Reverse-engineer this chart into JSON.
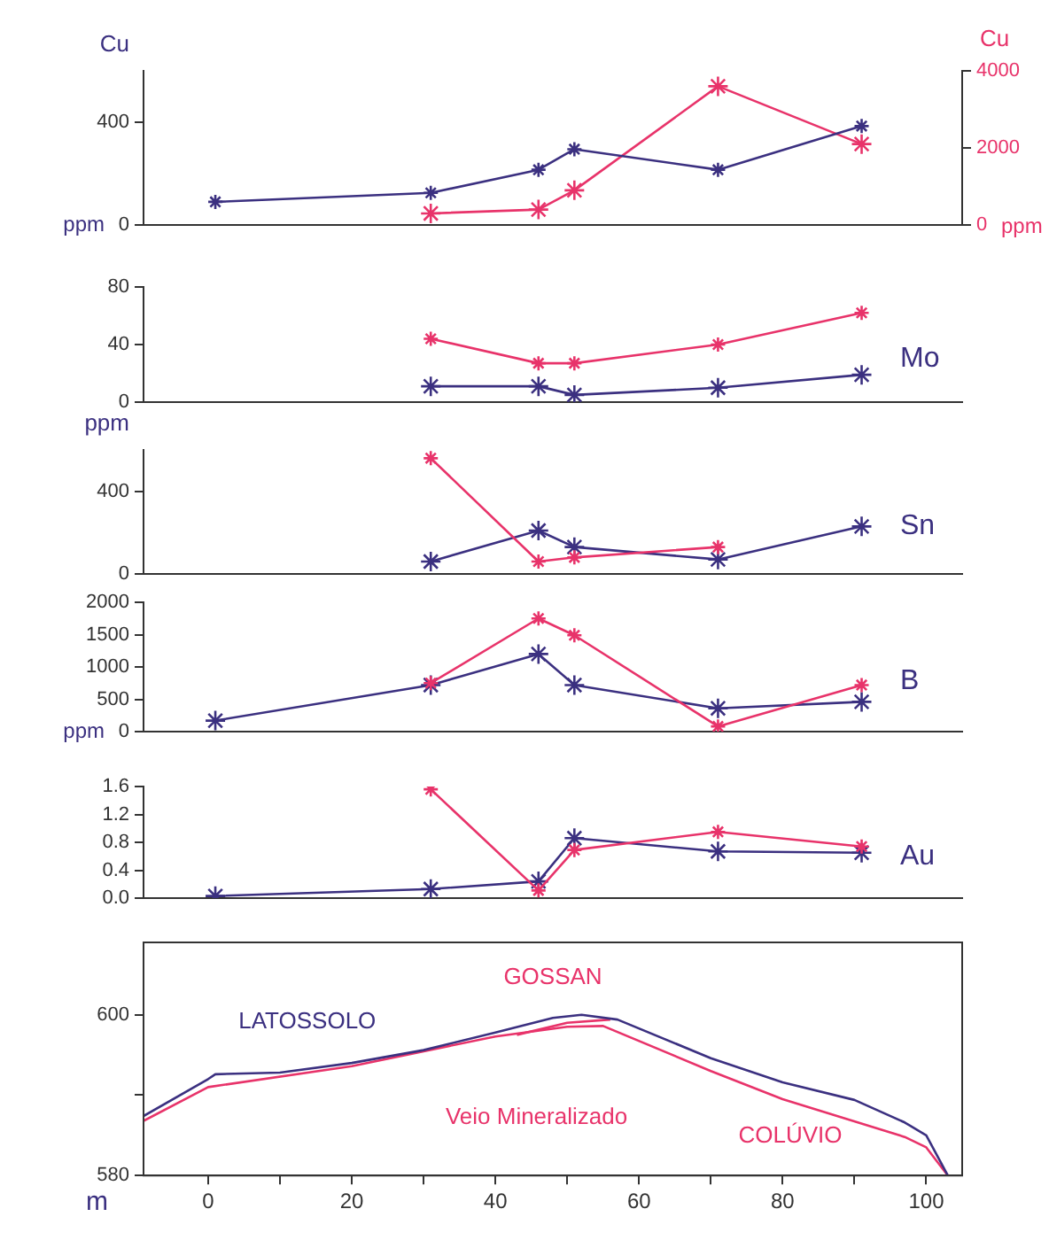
{
  "chart_data": [
    {
      "type": "line",
      "ylabel": "Cu",
      "y2label": "Cu",
      "annotations": [
        "ppm",
        "ppm"
      ],
      "xlim": [
        -9,
        105
      ],
      "ylim": [
        0,
        600
      ],
      "yticks": [
        0,
        400
      ],
      "y2lim": [
        0,
        4000
      ],
      "y2ticks": [
        0,
        2000,
        4000
      ],
      "tick_labels": [
        "y",
        "y2"
      ],
      "marker": "cross",
      "grid": false,
      "legend": false,
      "series": [
        {
          "color": "#3b3080",
          "x": [
            1,
            31,
            46,
            51,
            71,
            91
          ],
          "values": [
            90,
            125,
            215,
            295,
            215,
            385
          ]
        },
        {
          "color": "#e8336a",
          "axis": "y2",
          "x": [
            31,
            46,
            51,
            71,
            91
          ],
          "values": [
            300,
            400,
            900,
            3600,
            2100
          ]
        }
      ]
    },
    {
      "type": "line",
      "title": "Mo",
      "xlim": [
        -9,
        105
      ],
      "ylim": [
        0,
        80
      ],
      "yticks": [
        0,
        40,
        80
      ],
      "tick_labels": "y",
      "marker": "cross",
      "grid": false,
      "legend": false,
      "series": [
        {
          "color": "#e8336a",
          "x": [
            31,
            46,
            51,
            71,
            91
          ],
          "values": [
            44,
            27,
            27,
            40,
            62
          ]
        },
        {
          "color": "#3b3080",
          "x": [
            31,
            46,
            51,
            71,
            91
          ],
          "values": [
            11,
            11,
            5,
            10,
            19
          ]
        }
      ]
    },
    {
      "type": "line",
      "title": "Sn",
      "ylabel": "ppm",
      "xlim": [
        -9,
        105
      ],
      "ylim": [
        0,
        600
      ],
      "yticks": [
        0,
        400
      ],
      "tick_labels": "y",
      "marker": "cross",
      "grid": false,
      "legend": false,
      "series": [
        {
          "color": "#e8336a",
          "x": [
            31,
            46,
            51,
            71
          ],
          "values": [
            560,
            60,
            80,
            130
          ]
        },
        {
          "color": "#3b3080",
          "x": [
            31,
            46,
            51,
            71,
            91
          ],
          "values": [
            60,
            210,
            130,
            70,
            230
          ]
        }
      ]
    },
    {
      "type": "line",
      "title": "B",
      "annotations": [
        "ppm"
      ],
      "xlim": [
        -9,
        105
      ],
      "ylim": [
        0,
        2000
      ],
      "yticks": [
        0,
        500,
        1000,
        1500,
        2000
      ],
      "tick_labels": "y",
      "marker": "cross",
      "grid": false,
      "legend": false,
      "series": [
        {
          "color": "#e8336a",
          "x": [
            31,
            46,
            51,
            71,
            91
          ],
          "values": [
            750,
            1750,
            1490,
            80,
            720
          ]
        },
        {
          "color": "#3b3080",
          "x": [
            1,
            31,
            46,
            51,
            71,
            91
          ],
          "values": [
            170,
            720,
            1200,
            720,
            360,
            460
          ]
        }
      ]
    },
    {
      "type": "line",
      "title": "Au",
      "xlim": [
        -9,
        105
      ],
      "ylim": [
        0,
        1.6
      ],
      "yticks": [
        {
          "value": 0,
          "label": "0.0"
        },
        0.4,
        0.8,
        1.2,
        1.6
      ],
      "tick_labels": "y",
      "marker": "cross",
      "grid": false,
      "legend": false,
      "series": [
        {
          "color": "#e8336a",
          "x": [
            31,
            46,
            51,
            71,
            91
          ],
          "values": [
            1.56,
            0.11,
            0.69,
            0.95,
            0.74
          ]
        },
        {
          "color": "#3b3080",
          "x": [
            1,
            31,
            46,
            51,
            71,
            91
          ],
          "values": [
            0.03,
            0.13,
            0.24,
            0.86,
            0.67,
            0.65
          ]
        }
      ]
    },
    {
      "type": "line",
      "xlabel": "m",
      "xlim": [
        -9,
        105
      ],
      "xticks": [
        0,
        {
          "value": 10,
          "label": null
        },
        20,
        {
          "value": 30,
          "label": null
        },
        40,
        {
          "value": 50,
          "label": null
        },
        60,
        {
          "value": 70,
          "label": null
        },
        80,
        {
          "value": 90,
          "label": null
        },
        100
      ],
      "ylim": [
        580,
        609
      ],
      "yticks": [
        580,
        {
          "value": 590,
          "label": null
        },
        600
      ],
      "marker": "none",
      "grid": false,
      "legend": false,
      "annotations": [
        "LATOSSOLO",
        "GOSSAN",
        "Veio Mineralizado",
        "COLÚVIO"
      ],
      "series": [
        {
          "color": "#3b3080",
          "x": [
            -9,
            0,
            1,
            10,
            20,
            30,
            40,
            48,
            52,
            57,
            70,
            80,
            90,
            97,
            100,
            103
          ],
          "values": [
            587.4,
            592,
            592.6,
            592.8,
            594,
            595.6,
            597.8,
            599.6,
            600,
            599.4,
            594.6,
            591.6,
            589.4,
            586.6,
            585,
            580
          ]
        },
        {
          "color": "#e8336a",
          "x": [
            -9,
            0,
            20,
            40,
            50,
            55,
            70,
            80,
            97,
            100,
            103
          ],
          "values": [
            586.8,
            591,
            593.6,
            597.3,
            598.5,
            598.6,
            593,
            589.5,
            584.8,
            583.5,
            580
          ]
        },
        {
          "color": "#e8336a",
          "x": [
            43,
            50,
            56
          ],
          "values": [
            597.5,
            599,
            599.4
          ]
        }
      ]
    }
  ]
}
